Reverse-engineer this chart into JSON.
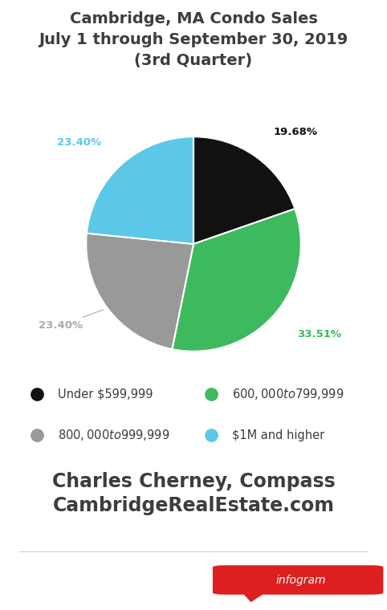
{
  "title_line1": "Cambridge, MA Condo Sales",
  "title_line2": "July 1 through September 30, 2019",
  "title_line3": "(3rd Quarter)",
  "title_color": "#3d3d3d",
  "title_fontsize": 14,
  "slices": [
    19.68,
    33.51,
    23.4,
    23.4
  ],
  "slice_labels": [
    "19.68%",
    "33.51%",
    "23.40%",
    "23.40%"
  ],
  "slice_colors": [
    "#111111",
    "#3dba5e",
    "#999999",
    "#5bc8e8"
  ],
  "slice_label_colors": [
    "#111111",
    "#3dba5e",
    "#aaaaaa",
    "#5bc8e8"
  ],
  "legend_labels": [
    "Under $599,999",
    "$600,000 to $799,999",
    "$800,000 to $999,999",
    "$1M and higher"
  ],
  "legend_colors": [
    "#111111",
    "#3dba5e",
    "#999999",
    "#5bc8e8"
  ],
  "footer_line1": "Charles Cherney, Compass",
  "footer_line2": "CambridgeRealEstate.com",
  "footer_color": "#3d3d3d",
  "footer_fontsize": 17,
  "background_color": "#ffffff",
  "startangle": 90
}
